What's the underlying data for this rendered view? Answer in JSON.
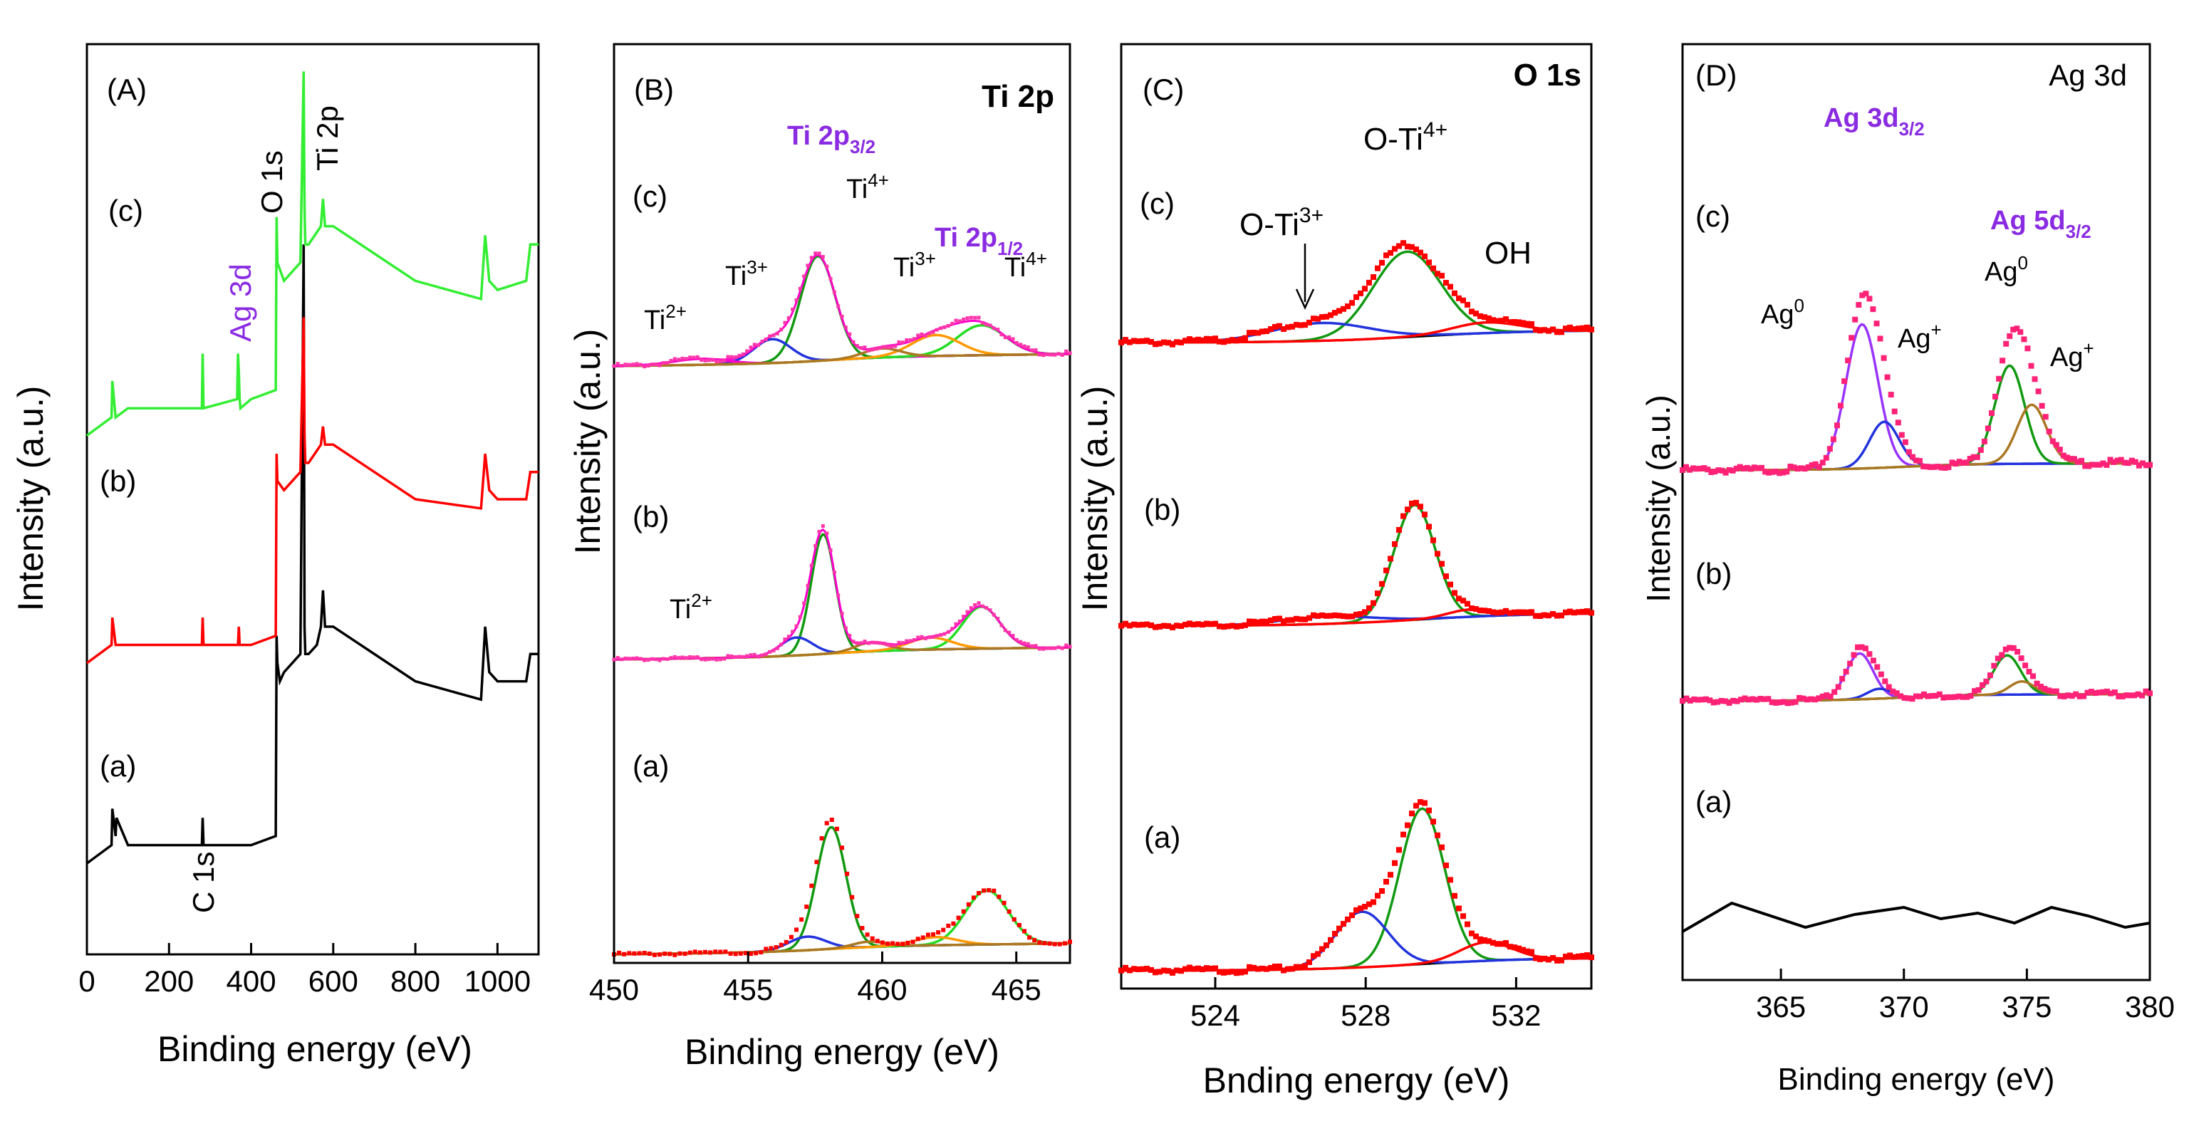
{
  "chart_data": [
    {
      "type": "line",
      "panel": "(A)",
      "xlabel": "Binding energy (eV)",
      "ylabel": "Intensity (a.u.)",
      "xlim": [
        0,
        1100
      ],
      "xticks": [
        "0",
        "200",
        "400",
        "600",
        "800",
        "1000"
      ],
      "traces": [
        {
          "label": "(a)",
          "color": "#000000",
          "base": 0.1,
          "x": [
            0,
            60,
            62,
            70,
            72,
            100,
            200,
            280,
            282,
            284,
            300,
            400,
            460,
            462,
            464,
            470,
            480,
            520,
            528,
            530,
            532,
            540,
            560,
            570,
            575,
            580,
            600,
            800,
            960,
            970,
            980,
            1000,
            1070,
            1080,
            1100
          ],
          "y": [
            0.1,
            0.12,
            0.16,
            0.13,
            0.15,
            0.12,
            0.12,
            0.12,
            0.15,
            0.12,
            0.12,
            0.12,
            0.13,
            0.35,
            0.32,
            0.3,
            0.31,
            0.33,
            0.78,
            0.36,
            0.33,
            0.33,
            0.34,
            0.36,
            0.4,
            0.36,
            0.36,
            0.3,
            0.28,
            0.36,
            0.31,
            0.3,
            0.3,
            0.33,
            0.33
          ]
        },
        {
          "label": "(b)",
          "color": "#ff0000",
          "base": 0.32,
          "x": [
            0,
            60,
            62,
            70,
            100,
            280,
            282,
            284,
            368,
            370,
            372,
            400,
            460,
            462,
            464,
            480,
            520,
            528,
            530,
            532,
            540,
            570,
            575,
            580,
            600,
            800,
            960,
            970,
            980,
            1000,
            1070,
            1080,
            1100
          ],
          "y": [
            0.32,
            0.34,
            0.37,
            0.34,
            0.34,
            0.34,
            0.37,
            0.34,
            0.34,
            0.36,
            0.34,
            0.34,
            0.35,
            0.55,
            0.52,
            0.51,
            0.53,
            0.7,
            0.57,
            0.54,
            0.54,
            0.56,
            0.58,
            0.56,
            0.56,
            0.5,
            0.49,
            0.55,
            0.51,
            0.5,
            0.5,
            0.53,
            0.53
          ]
        },
        {
          "label": "(c)",
          "color": "#33ee33",
          "base": 0.55,
          "x": [
            0,
            60,
            62,
            70,
            100,
            280,
            282,
            284,
            366,
            368,
            370,
            372,
            374,
            400,
            460,
            462,
            464,
            480,
            520,
            528,
            530,
            532,
            540,
            570,
            575,
            580,
            600,
            800,
            960,
            970,
            980,
            1000,
            1070,
            1080,
            1100
          ],
          "y": [
            0.57,
            0.59,
            0.63,
            0.59,
            0.6,
            0.6,
            0.66,
            0.6,
            0.61,
            0.66,
            0.64,
            0.61,
            0.6,
            0.61,
            0.62,
            0.81,
            0.76,
            0.74,
            0.76,
            0.97,
            0.82,
            0.78,
            0.78,
            0.8,
            0.83,
            0.8,
            0.8,
            0.74,
            0.72,
            0.79,
            0.74,
            0.73,
            0.74,
            0.78,
            0.78
          ]
        }
      ],
      "annotations": {
        "panel": "(A)",
        "c": "(c)",
        "b": "(b)",
        "a": "(a)",
        "ag3d": "Ag 3d",
        "o1s": "O 1s",
        "ti2p": "Ti 2p",
        "c1s": "C 1s"
      }
    },
    {
      "type": "line",
      "panel": "(B)",
      "title": "Ti 2p",
      "xlabel": "Binding energy (eV)",
      "ylabel": "Intensity (a.u.)",
      "xlim": [
        450,
        467
      ],
      "xticks": [
        "450",
        "455",
        "460",
        "465"
      ],
      "annotations": {
        "panel": "(B)",
        "title": "Ti 2p",
        "c": "(c)",
        "b": "(b)",
        "a": "(a)",
        "ti2p32_main": "Ti 2p",
        "ti2p32_sub": "3/2",
        "ti2p12_main": "Ti 2p",
        "ti2p12_sub": "1/2",
        "ti4p_a": "Ti",
        "ti4p_a_sup": "4+",
        "ti3p_a": "Ti",
        "ti3p_a_sup": "3+",
        "ti2p_a": "Ti",
        "ti2p_a_sup": "2+",
        "ti3p_b": "Ti",
        "ti3p_b_sup": "3+",
        "ti4p_b": "Ti",
        "ti4p_b_sup": "4+",
        "ti2p_mid": "Ti",
        "ti2p_mid_sup": "2+"
      }
    },
    {
      "type": "line",
      "panel": "(C)",
      "title": "O 1s",
      "xlabel": "Bnding energy (eV)",
      "ylabel": "Intensity (a.u.)",
      "xlim": [
        521.5,
        534
      ],
      "xticks": [
        "524",
        "528",
        "532"
      ],
      "annotations": {
        "panel": "(C)",
        "title": "O 1s",
        "c": "(c)",
        "b": "(b)",
        "a": "(a)",
        "oti4_main": "O-Ti",
        "oti4_sup": "4+",
        "oti3_main": "O-Ti",
        "oti3_sup": "3+",
        "oh": "OH"
      }
    },
    {
      "type": "line",
      "panel": "(D)",
      "title": "Ag 3d",
      "xlabel": "Binding energy (eV)",
      "ylabel": "Intensity (a.u.)",
      "xlim": [
        361,
        380
      ],
      "xticks": [
        "365",
        "370",
        "375",
        "380"
      ],
      "annotations": {
        "panel": "(D)",
        "title": "Ag 3d",
        "c": "(c)",
        "b": "(b)",
        "a": "(a)",
        "ag3d_main": "Ag 3d",
        "ag3d_sub": "3/2",
        "ag5d_main": "Ag 5d",
        "ag5d_sub": "3/2",
        "ag0_1": "Ag",
        "ag0_1_sup": "0",
        "agp_1": "Ag",
        "agp_1_sup": "+",
        "ag0_2": "Ag",
        "ag0_2_sup": "0",
        "agp_2": "Ag",
        "agp_2_sup": "+"
      }
    }
  ]
}
